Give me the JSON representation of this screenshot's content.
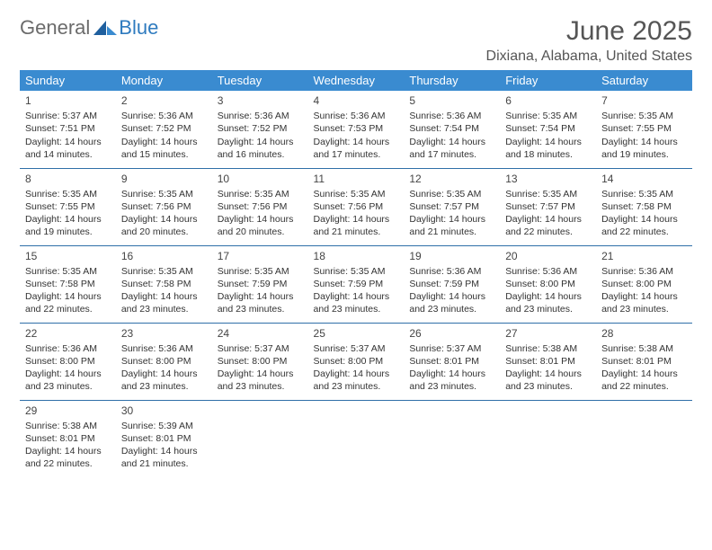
{
  "logo": {
    "text1": "General",
    "text2": "Blue"
  },
  "title": "June 2025",
  "location": "Dixiana, Alabama, United States",
  "header_bg": "#3a8bd0",
  "header_fg": "#ffffff",
  "border_color": "#2f6fa8",
  "text_color": "#333333",
  "days": [
    "Sunday",
    "Monday",
    "Tuesday",
    "Wednesday",
    "Thursday",
    "Friday",
    "Saturday"
  ],
  "weeks": [
    [
      {
        "n": "1",
        "sr": "Sunrise: 5:37 AM",
        "ss": "Sunset: 7:51 PM",
        "d1": "Daylight: 14 hours",
        "d2": "and 14 minutes."
      },
      {
        "n": "2",
        "sr": "Sunrise: 5:36 AM",
        "ss": "Sunset: 7:52 PM",
        "d1": "Daylight: 14 hours",
        "d2": "and 15 minutes."
      },
      {
        "n": "3",
        "sr": "Sunrise: 5:36 AM",
        "ss": "Sunset: 7:52 PM",
        "d1": "Daylight: 14 hours",
        "d2": "and 16 minutes."
      },
      {
        "n": "4",
        "sr": "Sunrise: 5:36 AM",
        "ss": "Sunset: 7:53 PM",
        "d1": "Daylight: 14 hours",
        "d2": "and 17 minutes."
      },
      {
        "n": "5",
        "sr": "Sunrise: 5:36 AM",
        "ss": "Sunset: 7:54 PM",
        "d1": "Daylight: 14 hours",
        "d2": "and 17 minutes."
      },
      {
        "n": "6",
        "sr": "Sunrise: 5:35 AM",
        "ss": "Sunset: 7:54 PM",
        "d1": "Daylight: 14 hours",
        "d2": "and 18 minutes."
      },
      {
        "n": "7",
        "sr": "Sunrise: 5:35 AM",
        "ss": "Sunset: 7:55 PM",
        "d1": "Daylight: 14 hours",
        "d2": "and 19 minutes."
      }
    ],
    [
      {
        "n": "8",
        "sr": "Sunrise: 5:35 AM",
        "ss": "Sunset: 7:55 PM",
        "d1": "Daylight: 14 hours",
        "d2": "and 19 minutes."
      },
      {
        "n": "9",
        "sr": "Sunrise: 5:35 AM",
        "ss": "Sunset: 7:56 PM",
        "d1": "Daylight: 14 hours",
        "d2": "and 20 minutes."
      },
      {
        "n": "10",
        "sr": "Sunrise: 5:35 AM",
        "ss": "Sunset: 7:56 PM",
        "d1": "Daylight: 14 hours",
        "d2": "and 20 minutes."
      },
      {
        "n": "11",
        "sr": "Sunrise: 5:35 AM",
        "ss": "Sunset: 7:56 PM",
        "d1": "Daylight: 14 hours",
        "d2": "and 21 minutes."
      },
      {
        "n": "12",
        "sr": "Sunrise: 5:35 AM",
        "ss": "Sunset: 7:57 PM",
        "d1": "Daylight: 14 hours",
        "d2": "and 21 minutes."
      },
      {
        "n": "13",
        "sr": "Sunrise: 5:35 AM",
        "ss": "Sunset: 7:57 PM",
        "d1": "Daylight: 14 hours",
        "d2": "and 22 minutes."
      },
      {
        "n": "14",
        "sr": "Sunrise: 5:35 AM",
        "ss": "Sunset: 7:58 PM",
        "d1": "Daylight: 14 hours",
        "d2": "and 22 minutes."
      }
    ],
    [
      {
        "n": "15",
        "sr": "Sunrise: 5:35 AM",
        "ss": "Sunset: 7:58 PM",
        "d1": "Daylight: 14 hours",
        "d2": "and 22 minutes."
      },
      {
        "n": "16",
        "sr": "Sunrise: 5:35 AM",
        "ss": "Sunset: 7:58 PM",
        "d1": "Daylight: 14 hours",
        "d2": "and 23 minutes."
      },
      {
        "n": "17",
        "sr": "Sunrise: 5:35 AM",
        "ss": "Sunset: 7:59 PM",
        "d1": "Daylight: 14 hours",
        "d2": "and 23 minutes."
      },
      {
        "n": "18",
        "sr": "Sunrise: 5:35 AM",
        "ss": "Sunset: 7:59 PM",
        "d1": "Daylight: 14 hours",
        "d2": "and 23 minutes."
      },
      {
        "n": "19",
        "sr": "Sunrise: 5:36 AM",
        "ss": "Sunset: 7:59 PM",
        "d1": "Daylight: 14 hours",
        "d2": "and 23 minutes."
      },
      {
        "n": "20",
        "sr": "Sunrise: 5:36 AM",
        "ss": "Sunset: 8:00 PM",
        "d1": "Daylight: 14 hours",
        "d2": "and 23 minutes."
      },
      {
        "n": "21",
        "sr": "Sunrise: 5:36 AM",
        "ss": "Sunset: 8:00 PM",
        "d1": "Daylight: 14 hours",
        "d2": "and 23 minutes."
      }
    ],
    [
      {
        "n": "22",
        "sr": "Sunrise: 5:36 AM",
        "ss": "Sunset: 8:00 PM",
        "d1": "Daylight: 14 hours",
        "d2": "and 23 minutes."
      },
      {
        "n": "23",
        "sr": "Sunrise: 5:36 AM",
        "ss": "Sunset: 8:00 PM",
        "d1": "Daylight: 14 hours",
        "d2": "and 23 minutes."
      },
      {
        "n": "24",
        "sr": "Sunrise: 5:37 AM",
        "ss": "Sunset: 8:00 PM",
        "d1": "Daylight: 14 hours",
        "d2": "and 23 minutes."
      },
      {
        "n": "25",
        "sr": "Sunrise: 5:37 AM",
        "ss": "Sunset: 8:00 PM",
        "d1": "Daylight: 14 hours",
        "d2": "and 23 minutes."
      },
      {
        "n": "26",
        "sr": "Sunrise: 5:37 AM",
        "ss": "Sunset: 8:01 PM",
        "d1": "Daylight: 14 hours",
        "d2": "and 23 minutes."
      },
      {
        "n": "27",
        "sr": "Sunrise: 5:38 AM",
        "ss": "Sunset: 8:01 PM",
        "d1": "Daylight: 14 hours",
        "d2": "and 23 minutes."
      },
      {
        "n": "28",
        "sr": "Sunrise: 5:38 AM",
        "ss": "Sunset: 8:01 PM",
        "d1": "Daylight: 14 hours",
        "d2": "and 22 minutes."
      }
    ],
    [
      {
        "n": "29",
        "sr": "Sunrise: 5:38 AM",
        "ss": "Sunset: 8:01 PM",
        "d1": "Daylight: 14 hours",
        "d2": "and 22 minutes."
      },
      {
        "n": "30",
        "sr": "Sunrise: 5:39 AM",
        "ss": "Sunset: 8:01 PM",
        "d1": "Daylight: 14 hours",
        "d2": "and 21 minutes."
      },
      null,
      null,
      null,
      null,
      null
    ]
  ]
}
